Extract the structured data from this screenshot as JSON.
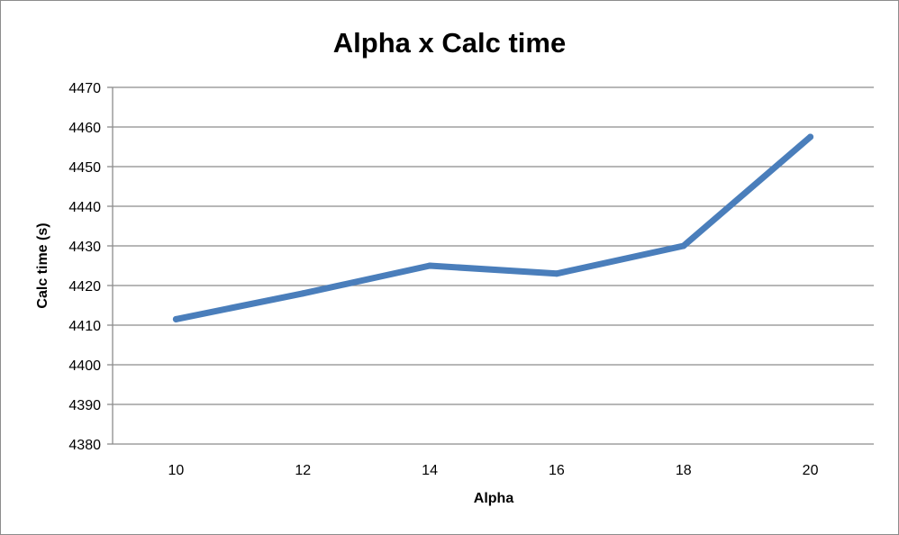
{
  "chart_data": {
    "type": "line",
    "title": "Alpha x Calc time",
    "xlabel": "Alpha",
    "ylabel": "Calc time (s)",
    "categories": [
      "10",
      "12",
      "14",
      "16",
      "18",
      "20"
    ],
    "series": [
      {
        "values": [
          4411.5,
          4418,
          4425,
          4423,
          4430,
          4457.5
        ]
      }
    ],
    "ylim": [
      4380,
      4470
    ],
    "yticks": [
      4380,
      4390,
      4400,
      4410,
      4420,
      4430,
      4440,
      4450,
      4460,
      4470
    ],
    "grid": true,
    "legend": "none",
    "colors": {
      "line": "#4a7ebb",
      "grid": "#8c8c8c",
      "axis": "#8c8c8c"
    }
  }
}
